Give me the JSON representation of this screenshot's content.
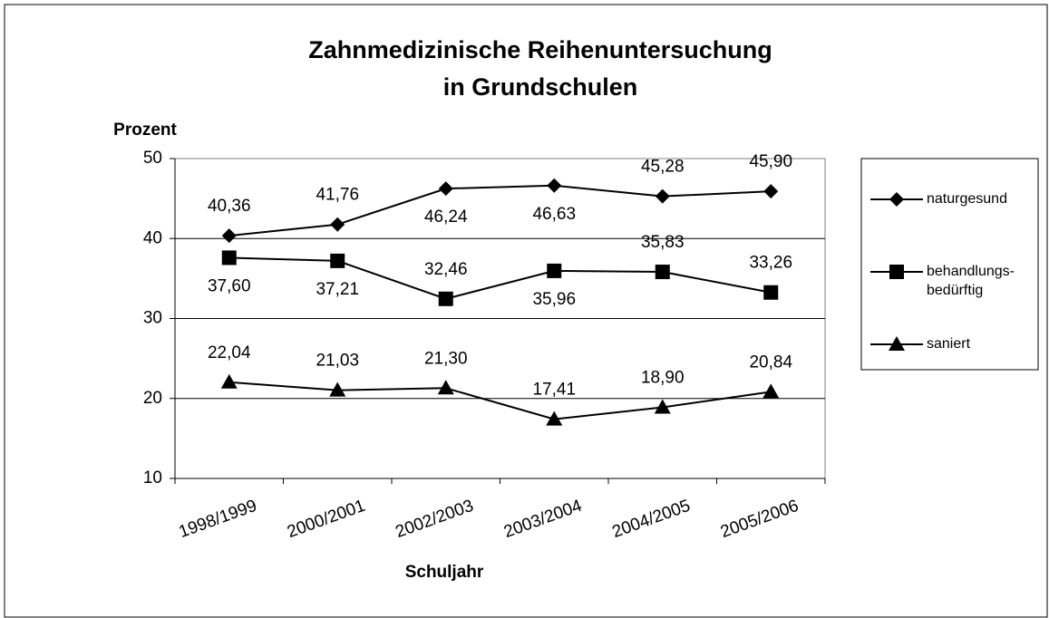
{
  "chart_data": {
    "type": "line",
    "title": [
      "Zahnmedizinische Reihenuntersuchung",
      "in Grundschulen"
    ],
    "y_label": "Prozent",
    "x_label": "Schuljahr",
    "categories": [
      "1998/1999",
      "2000/2001",
      "2002/2003",
      "2003/2004",
      "2004/2005",
      "2005/2006"
    ],
    "series": [
      {
        "name": "naturgesund",
        "color": "#000000",
        "marker": "diamond",
        "values": [
          40.36,
          41.76,
          46.24,
          46.63,
          45.28,
          45.9
        ],
        "value_labels": [
          "40,36",
          "41,76",
          "46,24",
          "46,63",
          "45,28",
          "45,90"
        ]
      },
      {
        "name": "behandlungs-bedürftig",
        "color": "#000000",
        "marker": "square",
        "values": [
          37.6,
          37.21,
          32.46,
          35.96,
          35.83,
          33.26
        ],
        "value_labels": [
          "37,60",
          "37,21",
          "32,46",
          "35,96",
          "35,83",
          "33,26"
        ]
      },
      {
        "name": "saniert",
        "color": "#000000",
        "marker": "triangle",
        "values": [
          22.04,
          21.03,
          21.3,
          17.41,
          18.9,
          20.84
        ],
        "value_labels": [
          "22,04",
          "21,03",
          "21,30",
          "17,41",
          "18,90",
          "20,84"
        ]
      }
    ],
    "ylim": [
      10,
      50
    ],
    "yticks": [
      10,
      20,
      30,
      40,
      50
    ],
    "grid": true,
    "legend": "right"
  }
}
